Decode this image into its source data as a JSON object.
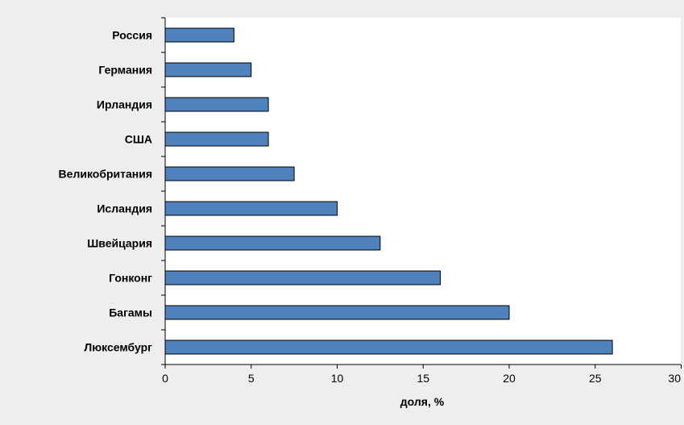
{
  "colors": {
    "background": "#eeeeee",
    "plot_background": "#ffffff",
    "bar_fill": "#4f81bd",
    "bar_stroke": "#000000",
    "axis": "#000000"
  },
  "chart_data": {
    "type": "bar",
    "orientation": "horizontal",
    "categories": [
      "Россия",
      "Германия",
      "Ирландия",
      "США",
      "Великобритания",
      "Исландия",
      "Швейцария",
      "Гонконг",
      "Багамы",
      "Люксембург"
    ],
    "values": [
      4,
      5,
      6,
      6,
      7.5,
      10,
      12.5,
      16,
      20,
      26
    ],
    "xlabel": "доля, %",
    "xlim": [
      0,
      30
    ],
    "xticks": [
      0,
      5,
      10,
      15,
      20,
      25,
      30
    ],
    "xtick_labels": [
      "0",
      "5",
      "10",
      "15",
      "20",
      "25",
      "30"
    ],
    "grid": false,
    "legend": "none"
  }
}
